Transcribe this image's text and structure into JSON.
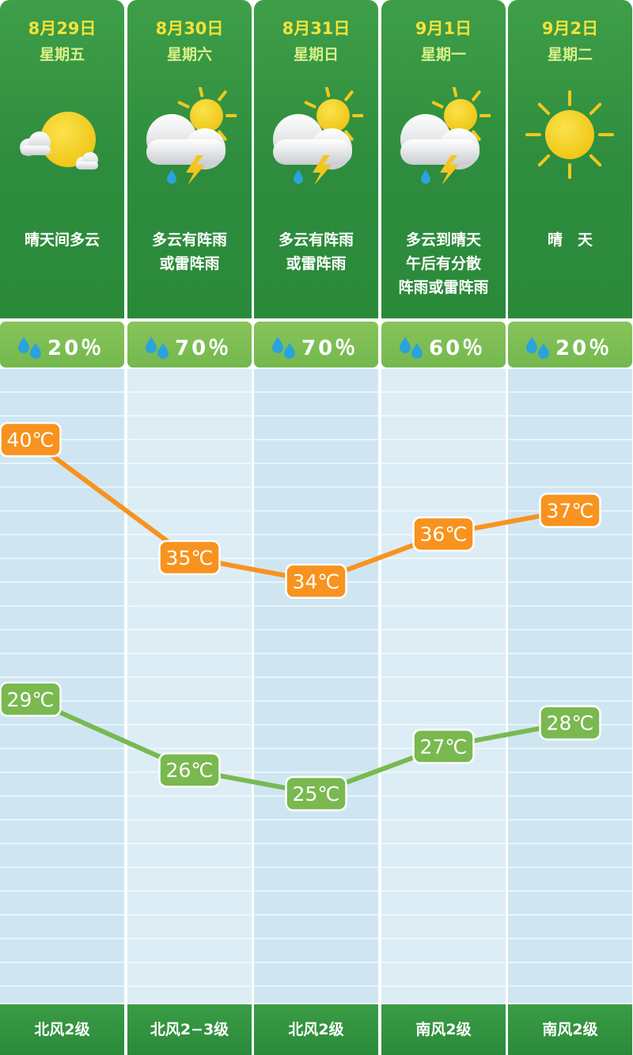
{
  "days": [
    {
      "date": "8月29日",
      "weekday": "星期五",
      "icon": "sun-with-cloud-icon",
      "condition": [
        "晴天间多云"
      ],
      "rain": "20％",
      "wind": "北风2级"
    },
    {
      "date": "8月30日",
      "weekday": "星期六",
      "icon": "thunderstorm-icon",
      "condition": [
        "多云有阵雨",
        "或雷阵雨"
      ],
      "rain": "70％",
      "wind": "北风2−3级"
    },
    {
      "date": "8月31日",
      "weekday": "星期日",
      "icon": "thunderstorm-icon",
      "condition": [
        "多云有阵雨",
        "或雷阵雨"
      ],
      "rain": "70％",
      "wind": "北风2级"
    },
    {
      "date": "9月1日",
      "weekday": "星期一",
      "icon": "thunderstorm-icon",
      "condition": [
        "多云到晴天",
        "午后有分散",
        "阵雨或雷阵雨"
      ],
      "rain": "60％",
      "wind": "南风2级"
    },
    {
      "date": "9月2日",
      "weekday": "星期二",
      "icon": "sun-icon",
      "condition": [
        "晴　天"
      ],
      "rain": "20％",
      "wind": "南风2级"
    }
  ],
  "colors": {
    "high": "#f7931e",
    "low": "#79b950",
    "header": "#2e8d3e",
    "date": "#f3e23a"
  },
  "chart_data": {
    "type": "line",
    "categories": [
      "8月29日",
      "8月30日",
      "8月31日",
      "9月1日",
      "9月2日"
    ],
    "unit": "℃",
    "series": [
      {
        "values": [
          40,
          35,
          34,
          36,
          37
        ]
      },
      {
        "values": [
          29,
          26,
          25,
          27,
          28
        ]
      }
    ],
    "labels_high": [
      "40℃",
      "35℃",
      "34℃",
      "36℃",
      "37℃"
    ],
    "labels_low": [
      "29℃",
      "26℃",
      "25℃",
      "27℃",
      "28℃"
    ],
    "ylim": [
      24,
      41
    ],
    "grid": true
  }
}
